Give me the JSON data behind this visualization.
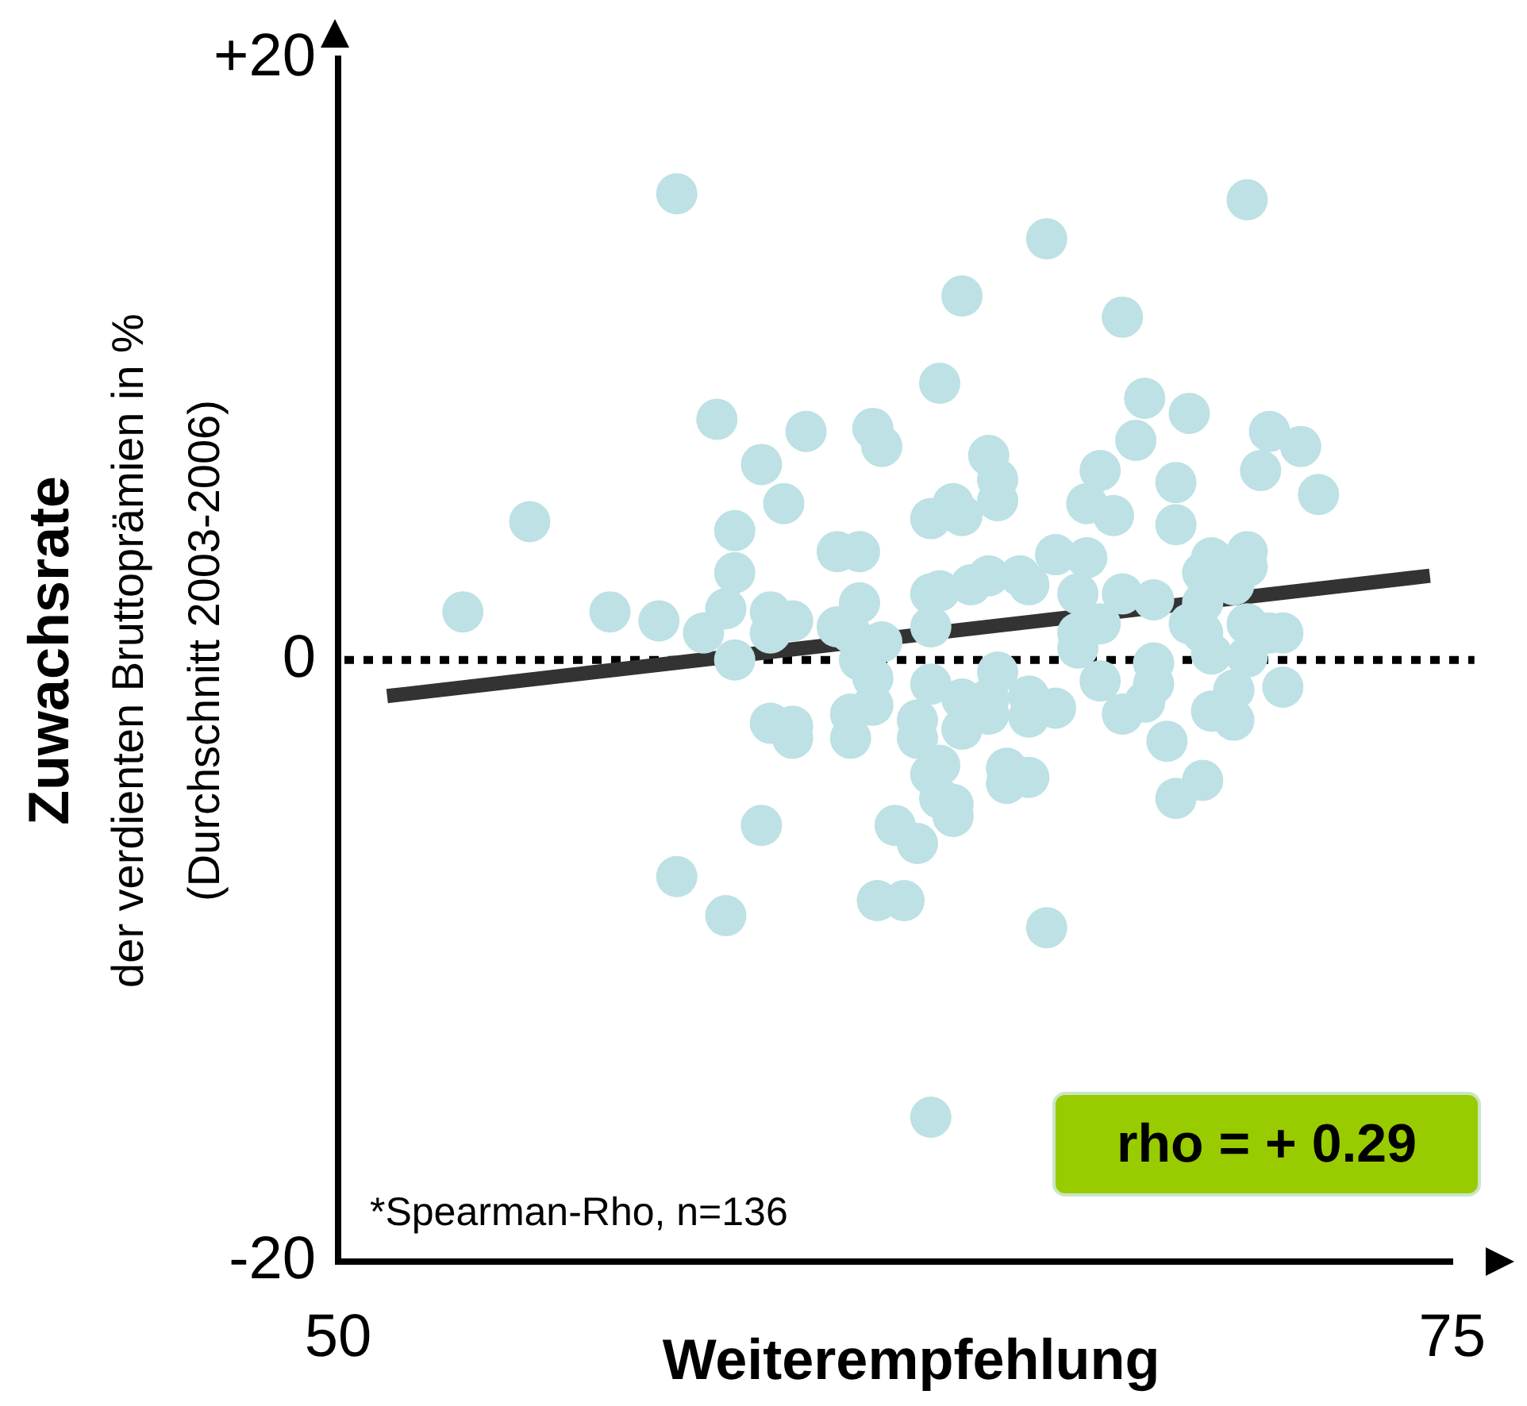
{
  "chart_data": {
    "type": "scatter",
    "xlabel": "Weiterempfehlung",
    "ylabel": "Zuwachsrate\nder verdienten Bruttoprämien in %\n(Durchschnitt 2003-2006)",
    "xlim": [
      50,
      75
    ],
    "xticks": [
      50,
      75
    ],
    "ylim": [
      -20,
      20
    ],
    "yticks": [
      {
        "value": 20,
        "label": "+20"
      },
      0,
      -20
    ],
    "marker": "circle",
    "ref_lines": [
      {
        "axis": "y",
        "value": 0,
        "color": "#000000",
        "line_style": "dotted"
      }
    ],
    "annotations": [
      "*Spearman-Rho, n=136",
      "rho = + 0.29"
    ],
    "series": [
      {
        "color": "#bde1e4",
        "x": [
          57.6,
          70.4,
          65.9,
          64.0,
          67.6,
          63.5,
          68.1,
          69.1,
          58.5,
          60.5,
          62.0,
          62.2,
          70.9,
          67.9,
          71.6,
          64.6,
          59.5,
          67.1,
          70.7,
          64.8,
          72.0,
          68.8,
          64.8,
          60.0,
          63.8,
          64.0,
          66.8,
          67.4,
          54.3,
          63.3,
          68.8,
          58.9,
          61.2,
          61.7,
          66.1,
          66.8,
          69.6,
          70.4,
          70.4,
          69.4,
          70.1,
          58.9,
          61.7,
          63.3,
          63.5,
          64.2,
          64.6,
          65.3,
          65.5,
          66.6,
          67.6,
          68.3,
          69.4,
          52.8,
          56.1,
          57.2,
          58.2,
          58.7,
          59.7,
          60.2,
          59.7,
          61.2,
          61.5,
          62.2,
          63.3,
          66.6,
          66.6,
          67.1,
          69.1,
          69.4,
          70.4,
          70.9,
          71.2,
          69.6,
          70.4,
          58.9,
          61.7,
          68.3,
          62.0,
          63.3,
          64.8,
          67.1,
          68.3,
          70.1,
          71.2,
          62.0,
          64.0,
          64.6,
          64.6,
          65.5,
          66.1,
          65.5,
          68.1,
          67.6,
          69.6,
          70.1,
          63.0,
          63.0,
          64.0,
          68.6,
          59.7,
          60.2,
          60.2,
          61.5,
          61.5,
          63.5,
          63.3,
          65.0,
          65.0,
          65.5,
          69.4,
          68.8,
          63.5,
          63.8,
          63.8,
          62.5,
          63.0,
          59.5,
          57.6,
          58.7,
          62.1,
          62.7,
          65.9,
          63.3
        ],
        "values": [
          15.5,
          15.3,
          14.0,
          12.1,
          11.4,
          9.2,
          8.7,
          8.2,
          8.0,
          7.6,
          7.7,
          7.1,
          7.6,
          7.3,
          7.1,
          6.8,
          6.5,
          6.3,
          6.3,
          6.0,
          5.5,
          5.9,
          5.3,
          5.2,
          5.2,
          4.8,
          5.2,
          4.8,
          4.6,
          4.7,
          4.5,
          4.3,
          3.6,
          3.6,
          3.5,
          3.4,
          3.4,
          3.6,
          3.1,
          2.9,
          2.5,
          2.9,
          1.9,
          2.2,
          2.3,
          2.5,
          2.8,
          2.8,
          2.5,
          2.2,
          2.2,
          2.0,
          1.9,
          1.6,
          1.6,
          1.3,
          0.9,
          1.7,
          1.6,
          1.3,
          0.9,
          1.1,
          0.9,
          0.6,
          1.1,
          0.9,
          0.4,
          1.2,
          1.2,
          0.9,
          1.2,
          0.9,
          0.9,
          0.2,
          0.1,
          0.0,
          0.0,
          -0.1,
          -0.6,
          -0.8,
          -0.4,
          -0.7,
          -0.8,
          -1.0,
          -0.9,
          -1.5,
          -1.3,
          -1.3,
          -1.8,
          -1.2,
          -1.6,
          -1.9,
          -1.4,
          -1.8,
          -1.7,
          -2.0,
          -2.0,
          -2.6,
          -2.3,
          -2.7,
          -2.1,
          -2.2,
          -2.6,
          -1.8,
          -2.6,
          -3.5,
          -3.8,
          -3.6,
          -4.1,
          -3.9,
          -4.0,
          -4.6,
          -4.6,
          -4.8,
          -5.2,
          -5.5,
          -6.1,
          -5.5,
          -7.2,
          -8.5,
          -8.0,
          -8.0,
          -8.9,
          -15.2
        ]
      },
      {
        "type": "line",
        "color": "#333333",
        "marker": "none",
        "line_style": "solid",
        "x": [
          51.1,
          74.5
        ],
        "values": [
          -1.2,
          2.8
        ]
      }
    ]
  }
}
